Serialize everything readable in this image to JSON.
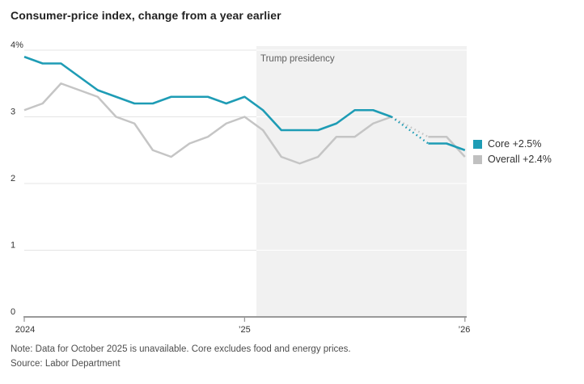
{
  "title": "Consumer-price index, change from a year earlier",
  "annotation": {
    "label": "Trump presidency"
  },
  "legend": {
    "items": [
      {
        "label": "Core +2.5%",
        "color": "#1e9cb5"
      },
      {
        "label": "Overall +2.4%",
        "color": "#c0c0c0"
      }
    ]
  },
  "footer": {
    "note": "Note: Data for October 2025 is unavailable. Core excludes food and energy prices.",
    "source": "Source: Labor Department"
  },
  "axis": {
    "y_tick_labels": [
      "4%",
      "3",
      "2",
      "1",
      "0"
    ],
    "x_tick_labels": [
      "2024",
      "’25",
      "’26"
    ]
  },
  "colors": {
    "core_line": "#1e9cb5",
    "overall_line": "#c5c5c5",
    "shaded_region": "#f1f1f1",
    "gridline": "#e4e4e4",
    "axis": "#9a9a9a"
  },
  "chart_data": {
    "type": "line",
    "title": "Consumer-price index, change from a year earlier",
    "y_unit": "percent, change from a year earlier",
    "ylim": [
      0,
      4
    ],
    "y_ticks": [
      0,
      1,
      2,
      3,
      4
    ],
    "x": [
      "Jan 2024",
      "Feb 2024",
      "Mar 2024",
      "Apr 2024",
      "May 2024",
      "Jun 2024",
      "Jul 2024",
      "Aug 2024",
      "Sep 2024",
      "Oct 2024",
      "Nov 2024",
      "Dec 2024",
      "Jan 2025",
      "Feb 2025",
      "Mar 2025",
      "Apr 2025",
      "May 2025",
      "Jun 2025",
      "Jul 2025",
      "Aug 2025",
      "Sep 2025",
      "Oct 2025",
      "Nov 2025",
      "Dec 2025",
      "Jan 2026"
    ],
    "series": [
      {
        "name": "Core",
        "legend_label": "Core +2.5%",
        "color": "#1e9cb5",
        "values": [
          3.9,
          3.8,
          3.8,
          3.6,
          3.4,
          3.3,
          3.2,
          3.2,
          3.3,
          3.3,
          3.3,
          3.2,
          3.3,
          3.1,
          2.8,
          2.8,
          2.8,
          2.9,
          3.1,
          3.1,
          3.0,
          null,
          2.6,
          2.6,
          2.5
        ]
      },
      {
        "name": "Overall",
        "legend_label": "Overall +2.4%",
        "color": "#c5c5c5",
        "values": [
          3.1,
          3.2,
          3.5,
          3.4,
          3.3,
          3.0,
          2.9,
          2.5,
          2.4,
          2.6,
          2.7,
          2.9,
          3.0,
          2.8,
          2.4,
          2.3,
          2.4,
          2.7,
          2.7,
          2.9,
          3.0,
          null,
          2.7,
          2.7,
          2.4
        ]
      }
    ],
    "gap": {
      "missing_month": "Oct 2025",
      "style": "dotted bridge between Sep 2025 and Nov 2025"
    },
    "shaded_region": {
      "label": "Trump presidency",
      "start_x": "late Jan 2025",
      "end_x": "right edge"
    },
    "legend_position": "right"
  }
}
